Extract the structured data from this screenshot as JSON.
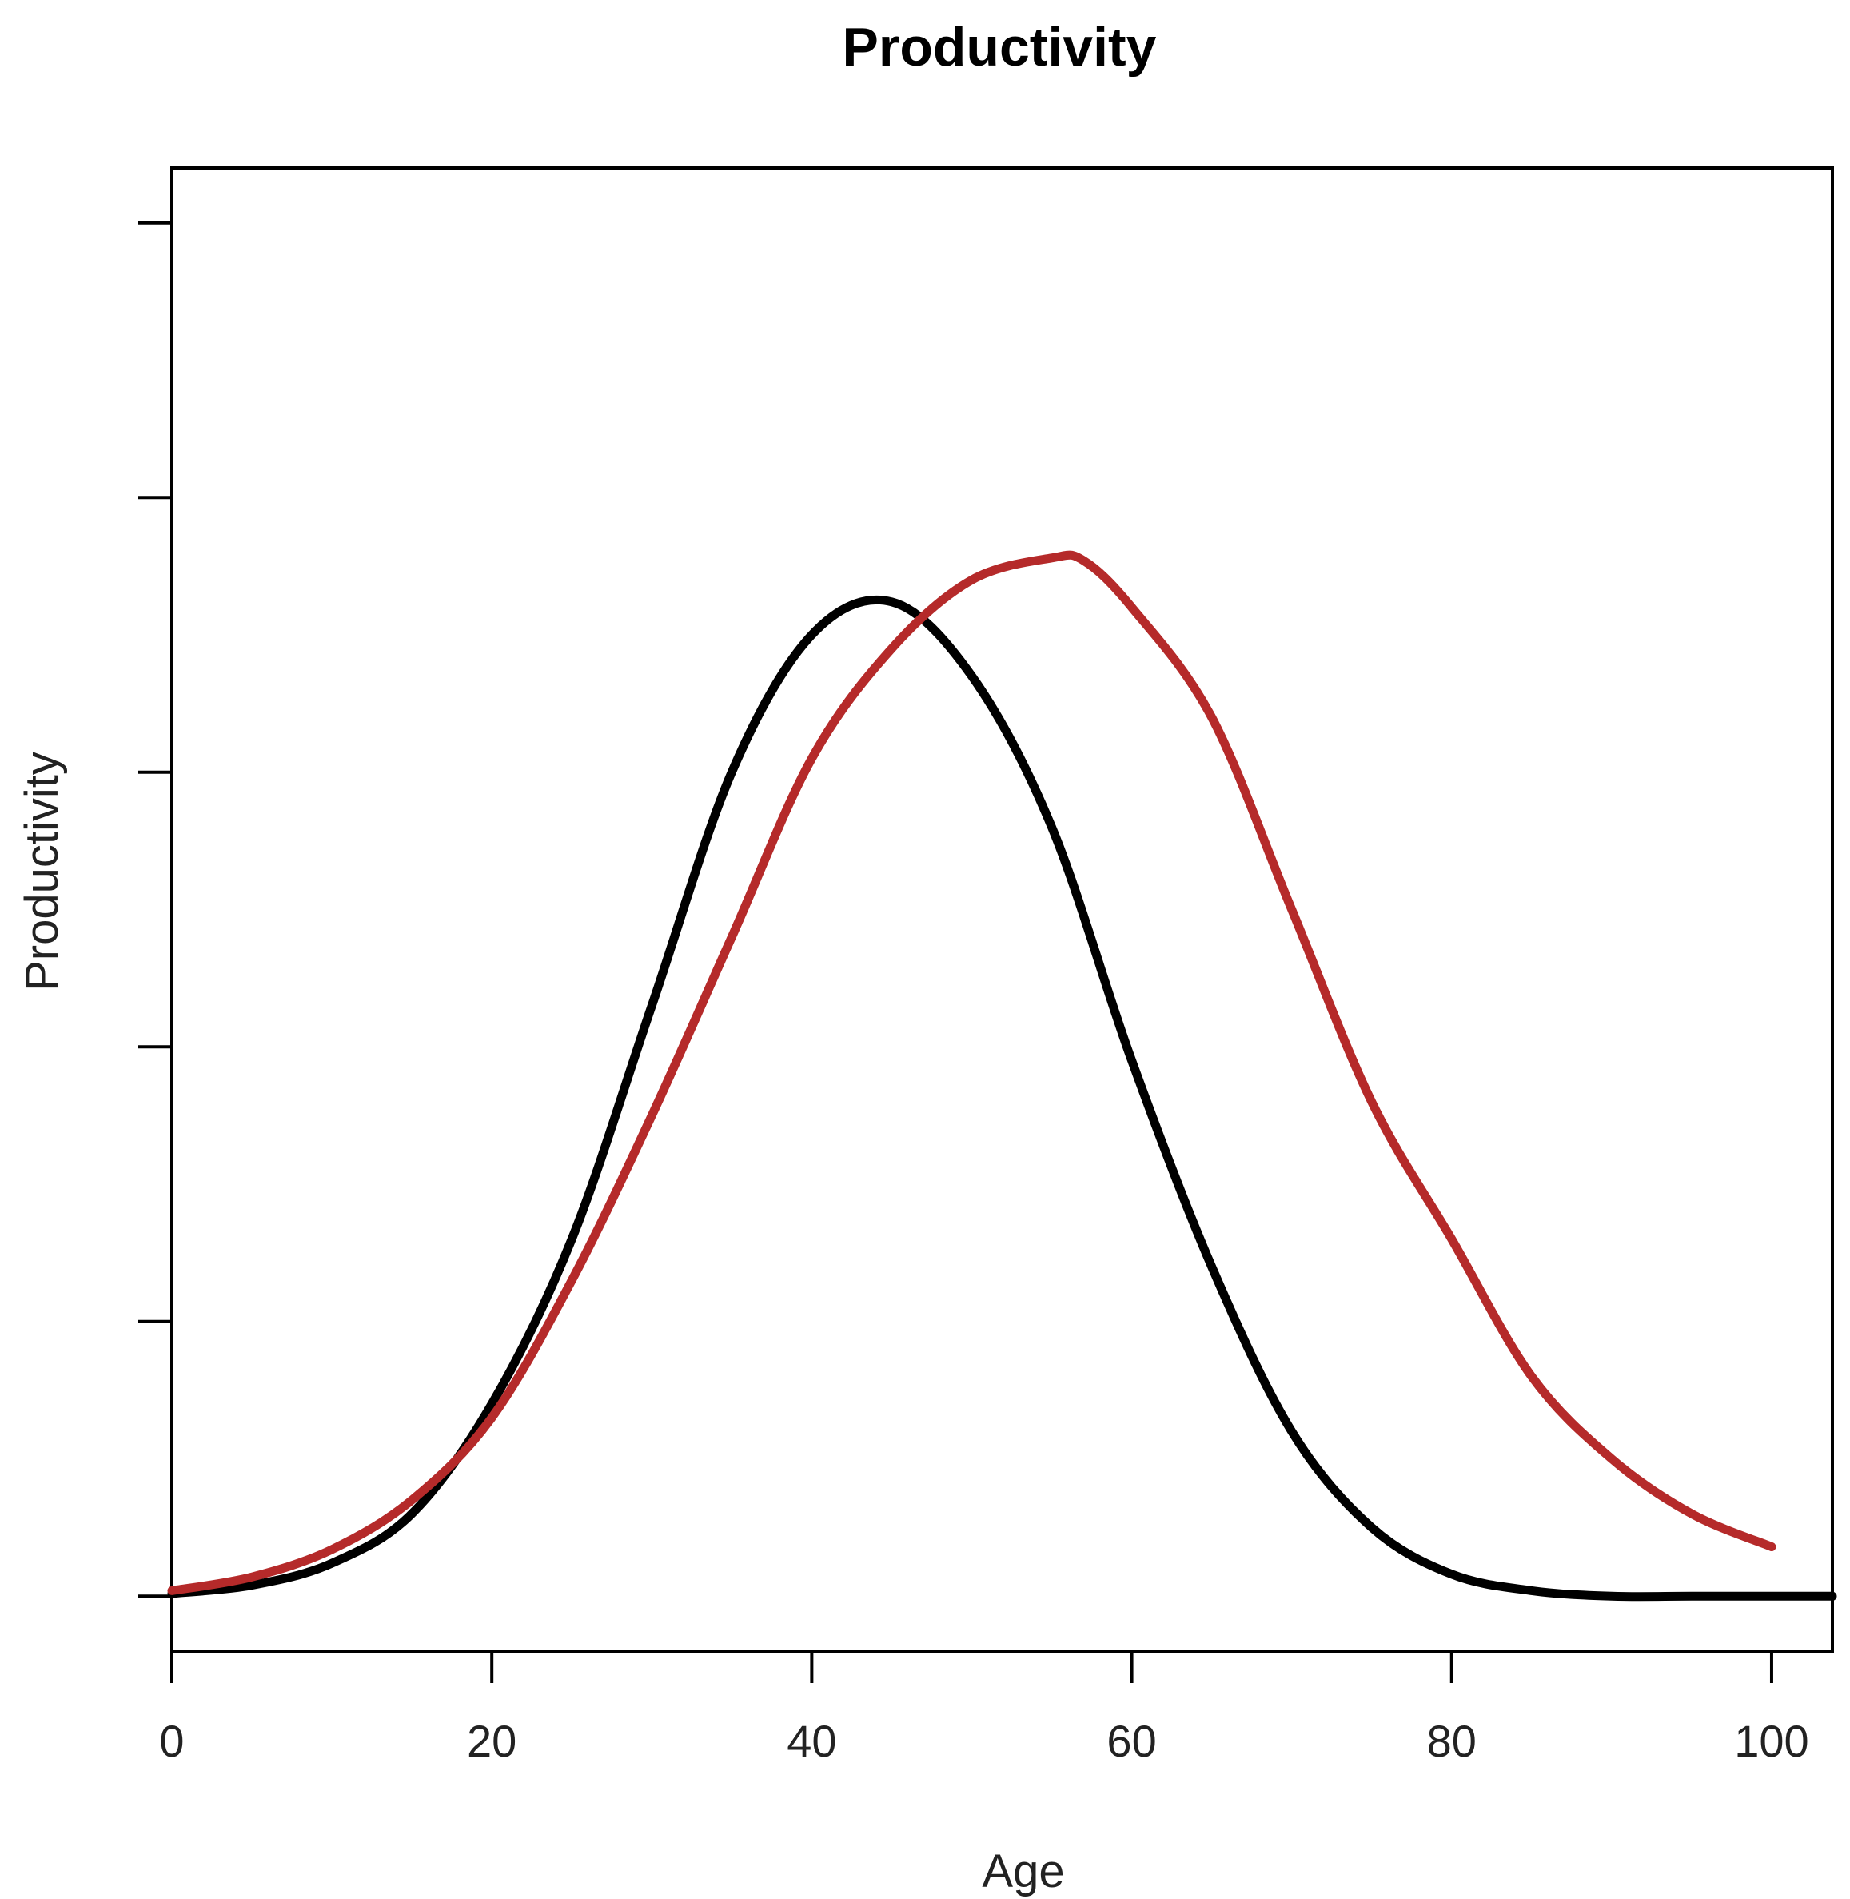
{
  "chart_data": {
    "type": "line",
    "title": "Productivity",
    "xlabel": "Age",
    "ylabel": "Productivity",
    "xlim": [
      0,
      103.8
    ],
    "ylim": [
      -0.2,
      5.2
    ],
    "x_ticks": [
      0,
      20,
      40,
      60,
      80,
      100
    ],
    "x_tick_labels": [
      "0",
      "20",
      "40",
      "60",
      "80",
      "100"
    ],
    "y_ticks": [
      0,
      1,
      2,
      3,
      4,
      5
    ],
    "y_tick_labels": [
      "",
      "",
      "",
      "",
      "",
      ""
    ],
    "grid": false,
    "legend": "none",
    "series": [
      {
        "color": "#000000",
        "x": [
          0,
          5,
          10,
          15,
          20,
          25,
          30,
          35,
          40,
          45,
          50,
          55,
          60,
          65,
          70,
          75,
          80,
          85,
          90,
          95,
          100,
          103.8
        ],
        "y": [
          0.01,
          0.04,
          0.12,
          0.3,
          0.7,
          1.3,
          2.15,
          3.0,
          3.5,
          3.62,
          3.35,
          2.8,
          1.95,
          1.2,
          0.6,
          0.25,
          0.08,
          0.02,
          0.0,
          0.0,
          0.0,
          0.0
        ]
      },
      {
        "color": "#b52a2a",
        "x": [
          0,
          5,
          10,
          15,
          20,
          25,
          30,
          35,
          40,
          45,
          50,
          55,
          57,
          60,
          65,
          70,
          75,
          80,
          85,
          90,
          95,
          100
        ],
        "y": [
          0.02,
          0.07,
          0.17,
          0.35,
          0.65,
          1.15,
          1.75,
          2.4,
          3.05,
          3.45,
          3.7,
          3.78,
          3.77,
          3.6,
          3.2,
          2.5,
          1.8,
          1.3,
          0.8,
          0.5,
          0.3,
          0.18
        ]
      }
    ]
  }
}
